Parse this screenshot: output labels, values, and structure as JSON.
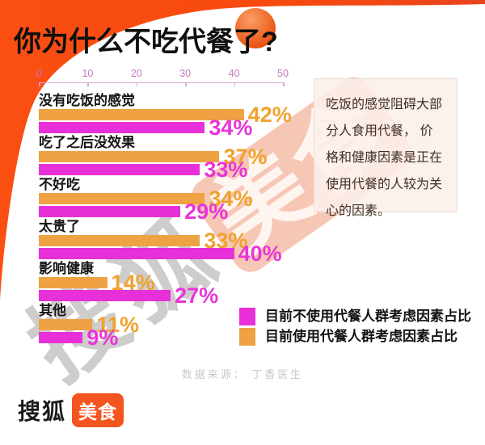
{
  "colors": {
    "frame_orange": "#FA4E12",
    "bar_orange": "#EFA243",
    "bar_magenta": "#E730D8",
    "axis_pink": "#C478C0",
    "logo_box_orange": "#F4541D"
  },
  "header": {
    "title": "你为什么不吃代餐了?"
  },
  "chart_data": {
    "type": "bar",
    "orientation": "horizontal",
    "title": "你为什么不吃代餐了?",
    "categories": [
      "没有吃饭的感觉",
      "吃了之后没效果",
      "不好吃",
      "太贵了",
      "影响健康",
      "其他"
    ],
    "series": [
      {
        "name": "目前使用代餐人群考虑因素占比",
        "color": "#EFA243",
        "values": [
          42,
          37,
          34,
          33,
          14,
          11
        ]
      },
      {
        "name": "目前不使用代餐人群考虑因素占比",
        "color": "#E730D8",
        "values": [
          34,
          33,
          29,
          40,
          27,
          9
        ]
      }
    ],
    "value_suffix": "%",
    "xlim": [
      0,
      50
    ],
    "x_ticks": [
      0,
      10,
      20,
      30,
      40,
      50
    ],
    "grid": false,
    "legend_position": "bottom-right"
  },
  "legend": {
    "items": [
      {
        "label": "目前不使用代餐人群考虑因素占比",
        "color": "#E730D8"
      },
      {
        "label": "目前使用代餐人群考虑因素占比",
        "color": "#EFA243"
      }
    ]
  },
  "annotation": {
    "text": "吃饭的感觉阻碍大部分人食用代餐， 价格和健康因素是正在使用代餐的人较为关心的因素。"
  },
  "footer": {
    "source": "数据来源： 丁香医生",
    "logo_text": "搜狐",
    "logo_badge": "美食"
  },
  "watermark": {
    "text_gray": "搜狐",
    "text_badge": "美食"
  }
}
